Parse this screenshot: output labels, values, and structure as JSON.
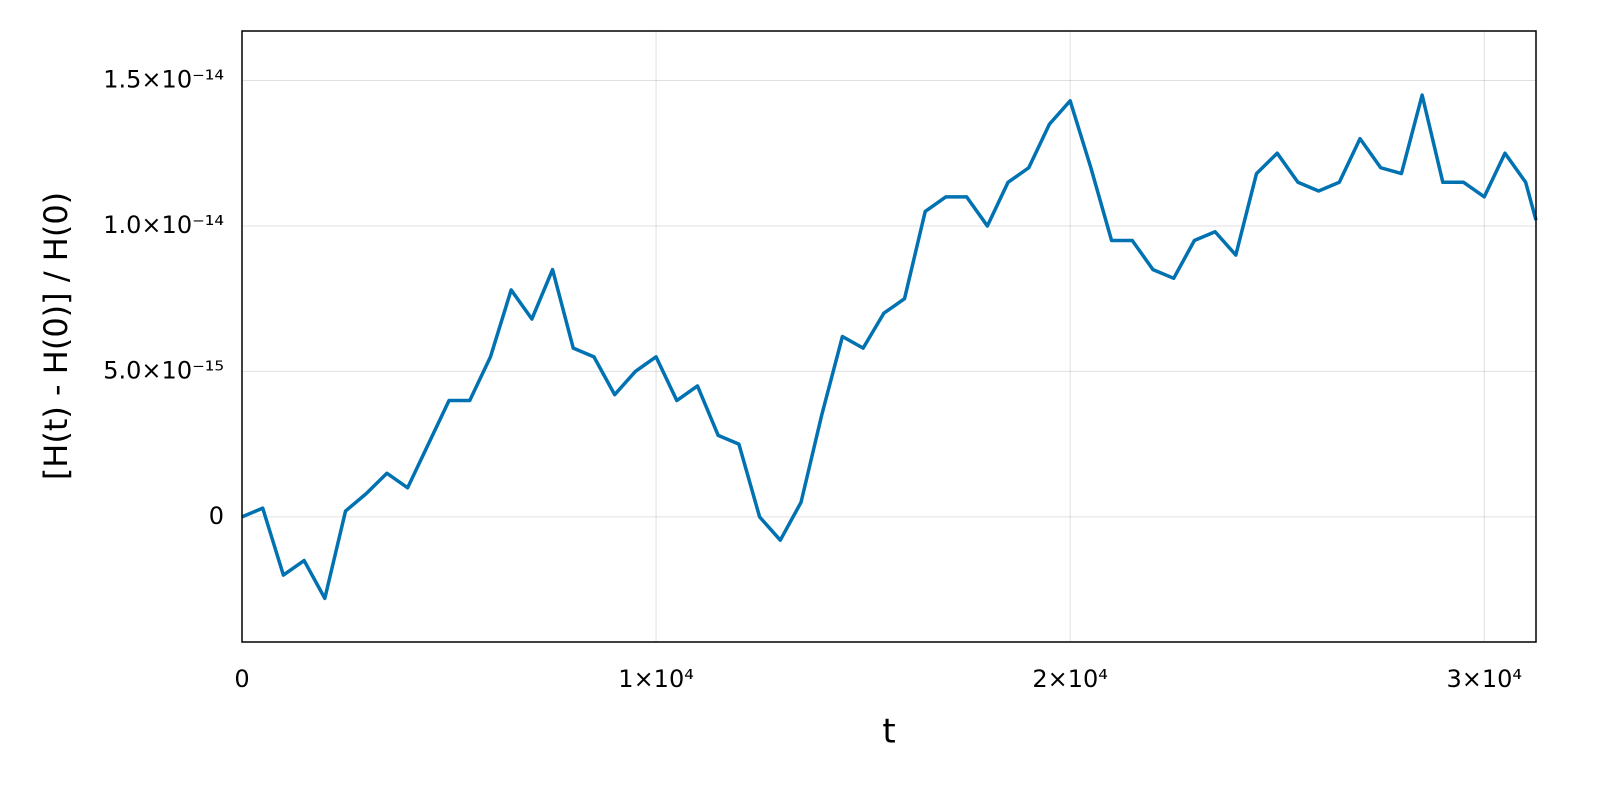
{
  "chart_data": {
    "type": "line",
    "xlabel": "t",
    "ylabel": "[H(t) - H(0)] / H(0)",
    "x": [
      0,
      500,
      1000,
      1500,
      2000,
      2500,
      3000,
      3500,
      4000,
      4500,
      5000,
      5500,
      6000,
      6500,
      7000,
      7500,
      8000,
      8500,
      9000,
      9500,
      10000,
      10500,
      11000,
      11500,
      12000,
      12500,
      13000,
      13500,
      14000,
      14500,
      15000,
      15500,
      16000,
      16500,
      17000,
      17500,
      18000,
      18500,
      19000,
      19500,
      20000,
      20500,
      21000,
      21500,
      22000,
      22500,
      23000,
      23500,
      24000,
      24500,
      25000,
      25500,
      26000,
      26500,
      27000,
      27500,
      28000,
      28500,
      29000,
      29500,
      30000,
      30500,
      31000,
      31250
    ],
    "series": [
      {
        "color": "#0072b2",
        "values": [
          0,
          3e-16,
          -2e-15,
          -1.5e-15,
          -2.8e-15,
          2e-16,
          8e-16,
          1.5e-15,
          1e-15,
          2.5e-15,
          4e-15,
          4e-15,
          5.5e-15,
          7.8e-15,
          6.8e-15,
          8.5e-15,
          5.8e-15,
          5.5e-15,
          4.2e-15,
          5e-15,
          5.5e-15,
          4e-15,
          4.5e-15,
          2.8e-15,
          2.5e-15,
          0,
          -8e-16,
          5e-16,
          3.5e-15,
          6.2e-15,
          5.8e-15,
          7e-15,
          7.5e-15,
          1.05e-14,
          1.1e-14,
          1.1e-14,
          1e-14,
          1.15e-14,
          1.2e-14,
          1.35e-14,
          1.43e-14,
          1.2e-14,
          9.5e-15,
          9.5e-15,
          8.5e-15,
          8.2e-15,
          9.5e-15,
          9.8e-15,
          9e-15,
          1.18e-14,
          1.25e-14,
          1.15e-14,
          1.12e-14,
          1.15e-14,
          1.3e-14,
          1.2e-14,
          1.18e-14,
          1.45e-14,
          1.15e-14,
          1.15e-14,
          1.1e-14,
          1.25e-14,
          1.15e-14,
          1.02e-14
        ]
      }
    ],
    "xlim": [
      0,
      31250
    ],
    "ylim": [
      -4.3e-15,
      1.67e-14
    ],
    "xticks": [
      0,
      {
        "value": 10000,
        "label": "1×10⁴"
      },
      {
        "value": 20000,
        "label": "2×10⁴"
      },
      {
        "value": 30000,
        "label": "3×10⁴"
      }
    ],
    "yticks": [
      0,
      {
        "value": 5e-15,
        "label": "5.0×10⁻¹⁵"
      },
      {
        "value": 1e-14,
        "label": "1.0×10⁻¹⁴"
      },
      {
        "value": 1.5e-14,
        "label": "1.5×10⁻¹⁴"
      }
    ],
    "grid": true
  }
}
